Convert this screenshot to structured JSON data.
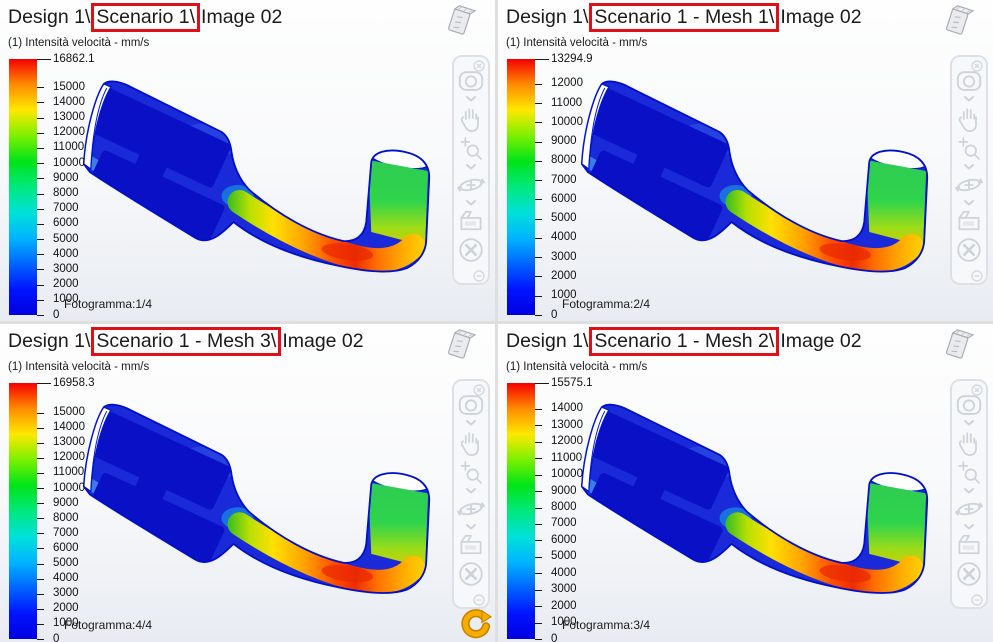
{
  "app": {
    "divider_color": "#dfdfdf",
    "highlight_box_color": "#e11018"
  },
  "legend_gradient": [
    "#f40000",
    "#ff8c00",
    "#ffe800",
    "#7cf000",
    "#00e418",
    "#00e87c",
    "#00e2d8",
    "#00b4ff",
    "#0064ff",
    "#0014ff",
    "#0000e0"
  ],
  "viewports": [
    {
      "name": "top-left",
      "title_prefix": "Design 1\\",
      "title_highlight": "Scenario 1\\",
      "title_suffix": "Image 02",
      "legend_title": "(1) Intensità velocità - mm/s",
      "max_label": "16862.1",
      "max_value": 16862.1,
      "ticks": [
        15000,
        14000,
        13000,
        12000,
        11000,
        10000,
        9000,
        8000,
        7000,
        6000,
        5000,
        4000,
        3000,
        2000,
        1000,
        0
      ],
      "frame_label": "Fotogramma:1/4"
    },
    {
      "name": "top-right",
      "title_prefix": "Design 1\\",
      "title_highlight": "Scenario 1 - Mesh 1\\",
      "title_suffix": "Image 02",
      "legend_title": "(1) Intensità velocità - mm/s",
      "max_label": "13294.9",
      "max_value": 13294.9,
      "ticks": [
        12000,
        11000,
        10000,
        9000,
        8000,
        7000,
        6000,
        5000,
        4000,
        3000,
        2000,
        1000,
        0
      ],
      "frame_label": "Fotogramma:2/4"
    },
    {
      "name": "bottom-left",
      "title_prefix": "Design 1\\",
      "title_highlight": "Scenario 1 - Mesh 3\\",
      "title_suffix": "Image 02",
      "legend_title": "(1) Intensità velocità - mm/s",
      "max_label": "16958.3",
      "max_value": 16958.3,
      "ticks": [
        15000,
        14000,
        13000,
        12000,
        11000,
        10000,
        9000,
        8000,
        7000,
        6000,
        5000,
        4000,
        3000,
        2000,
        1000,
        0
      ],
      "frame_label": "Fotogramma:4/4"
    },
    {
      "name": "bottom-right",
      "title_prefix": "Design 1\\",
      "title_highlight": "Scenario 1 - Mesh 2\\",
      "title_suffix": "Image 02",
      "legend_title": "(1) Intensità velocità - mm/s",
      "max_label": "15575.1",
      "max_value": 15575.1,
      "ticks": [
        14000,
        13000,
        12000,
        11000,
        10000,
        9000,
        8000,
        7000,
        6000,
        5000,
        4000,
        3000,
        2000,
        1000,
        0
      ],
      "frame_label": "Fotogramma:3/4"
    }
  ],
  "toolbar": {
    "icons": [
      "zoom-window",
      "pan",
      "zoom",
      "orbit",
      "section-view",
      "deactivate"
    ],
    "close_icon": "close",
    "collapse_icon": "collapse"
  },
  "misc_icons": {
    "model_file_icon": "tilted-3d-file",
    "refresh_icon_color": "#f6ad00"
  }
}
